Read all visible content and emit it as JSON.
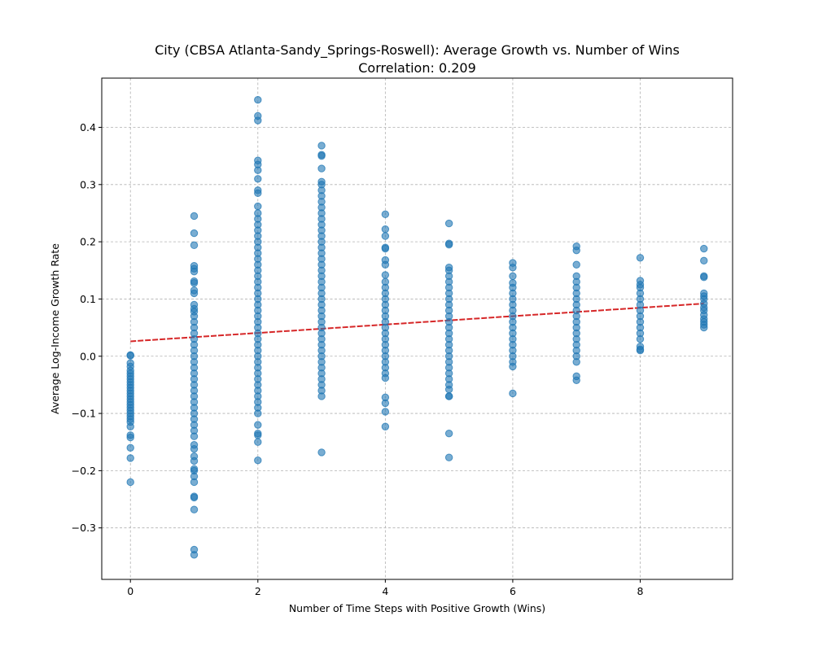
{
  "chart_data": {
    "type": "scatter",
    "title": "City (CBSA Atlanta-Sandy_Springs-Roswell): Average Growth vs. Number of Wins",
    "subtitle": "Correlation: 0.209",
    "xlabel": "Number of Time Steps with Positive Growth (Wins)",
    "ylabel": "Average Log-Income Growth Rate",
    "xlim": [
      -0.45,
      9.45
    ],
    "ylim": [
      -0.39,
      0.486
    ],
    "x_ticks": [
      0,
      2,
      4,
      6,
      8
    ],
    "y_ticks": [
      -0.3,
      -0.2,
      -0.1,
      0.0,
      0.1,
      0.2,
      0.3,
      0.4
    ],
    "y_tick_labels": [
      "−0.3",
      "−0.2",
      "−0.1",
      "0.0",
      "0.1",
      "0.2",
      "0.3",
      "0.4"
    ],
    "grid": true,
    "point_color": "#1f77b4",
    "trend_color": "#d62728",
    "trend_line": {
      "x": [
        0,
        9
      ],
      "y": [
        0.026,
        0.092
      ]
    },
    "columns": [
      {
        "x": 0,
        "y": [
          0.002,
          0.001,
          -0.012,
          -0.018,
          -0.025,
          -0.03,
          -0.035,
          -0.04,
          -0.045,
          -0.05,
          -0.055,
          -0.06,
          -0.065,
          -0.07,
          -0.075,
          -0.08,
          -0.085,
          -0.09,
          -0.095,
          -0.1,
          -0.105,
          -0.11,
          -0.115,
          -0.123,
          -0.138,
          -0.142,
          -0.16,
          -0.178,
          -0.22
        ]
      },
      {
        "x": 1,
        "y": [
          0.245,
          0.215,
          0.194,
          0.158,
          0.153,
          0.148,
          0.131,
          0.128,
          0.115,
          0.11,
          0.09,
          0.083,
          0.078,
          0.07,
          0.06,
          0.05,
          0.04,
          0.03,
          0.02,
          0.01,
          0.0,
          -0.01,
          -0.02,
          -0.03,
          -0.04,
          -0.05,
          -0.06,
          -0.07,
          -0.08,
          -0.09,
          -0.1,
          -0.11,
          -0.12,
          -0.13,
          -0.14,
          -0.155,
          -0.162,
          -0.175,
          -0.183,
          -0.197,
          -0.2,
          -0.21,
          -0.22,
          -0.245,
          -0.247,
          -0.268,
          -0.338,
          -0.347
        ]
      },
      {
        "x": 2,
        "y": [
          0.448,
          0.42,
          0.412,
          0.342,
          0.335,
          0.325,
          0.31,
          0.29,
          0.285,
          0.262,
          0.25,
          0.24,
          0.23,
          0.22,
          0.21,
          0.2,
          0.19,
          0.18,
          0.17,
          0.16,
          0.15,
          0.14,
          0.13,
          0.12,
          0.11,
          0.1,
          0.09,
          0.08,
          0.07,
          0.06,
          0.05,
          0.04,
          0.03,
          0.02,
          0.01,
          0.0,
          -0.01,
          -0.02,
          -0.03,
          -0.04,
          -0.05,
          -0.06,
          -0.07,
          -0.08,
          -0.09,
          -0.1,
          -0.12,
          -0.135,
          -0.138,
          -0.15,
          -0.182
        ]
      },
      {
        "x": 3,
        "y": [
          0.368,
          0.352,
          0.35,
          0.328,
          0.305,
          0.3,
          0.29,
          0.28,
          0.27,
          0.26,
          0.25,
          0.24,
          0.23,
          0.22,
          0.21,
          0.2,
          0.19,
          0.18,
          0.17,
          0.16,
          0.15,
          0.14,
          0.13,
          0.12,
          0.11,
          0.1,
          0.09,
          0.08,
          0.07,
          0.06,
          0.05,
          0.04,
          0.03,
          0.02,
          0.01,
          0.0,
          -0.01,
          -0.02,
          -0.03,
          -0.04,
          -0.05,
          -0.06,
          -0.07,
          -0.168
        ]
      },
      {
        "x": 4,
        "y": [
          0.248,
          0.222,
          0.21,
          0.19,
          0.188,
          0.168,
          0.16,
          0.142,
          0.13,
          0.12,
          0.11,
          0.1,
          0.09,
          0.08,
          0.07,
          0.06,
          0.05,
          0.04,
          0.03,
          0.02,
          0.01,
          0.0,
          -0.01,
          -0.02,
          -0.03,
          -0.038,
          -0.072,
          -0.082,
          -0.097,
          -0.123
        ]
      },
      {
        "x": 5,
        "y": [
          0.232,
          0.197,
          0.195,
          0.155,
          0.15,
          0.14,
          0.13,
          0.12,
          0.11,
          0.1,
          0.09,
          0.08,
          0.07,
          0.06,
          0.05,
          0.04,
          0.03,
          0.02,
          0.01,
          0.0,
          -0.01,
          -0.02,
          -0.03,
          -0.04,
          -0.05,
          -0.058,
          -0.07,
          -0.07,
          -0.135,
          -0.177
        ]
      },
      {
        "x": 6,
        "y": [
          0.163,
          0.155,
          0.14,
          0.128,
          0.12,
          0.11,
          0.1,
          0.09,
          0.08,
          0.07,
          0.06,
          0.05,
          0.04,
          0.03,
          0.02,
          0.01,
          0.0,
          -0.01,
          -0.018,
          -0.065
        ]
      },
      {
        "x": 7,
        "y": [
          0.192,
          0.185,
          0.16,
          0.14,
          0.13,
          0.12,
          0.11,
          0.1,
          0.09,
          0.08,
          0.07,
          0.06,
          0.05,
          0.04,
          0.03,
          0.02,
          0.01,
          0.0,
          -0.01,
          -0.035,
          -0.042
        ]
      },
      {
        "x": 8,
        "y": [
          0.172,
          0.132,
          0.125,
          0.12,
          0.11,
          0.1,
          0.09,
          0.08,
          0.07,
          0.06,
          0.05,
          0.04,
          0.03,
          0.017,
          0.012,
          0.01
        ]
      },
      {
        "x": 9,
        "y": [
          0.188,
          0.167,
          0.14,
          0.138,
          0.11,
          0.105,
          0.1,
          0.092,
          0.085,
          0.08,
          0.072,
          0.065,
          0.06,
          0.055,
          0.05
        ]
      }
    ]
  }
}
